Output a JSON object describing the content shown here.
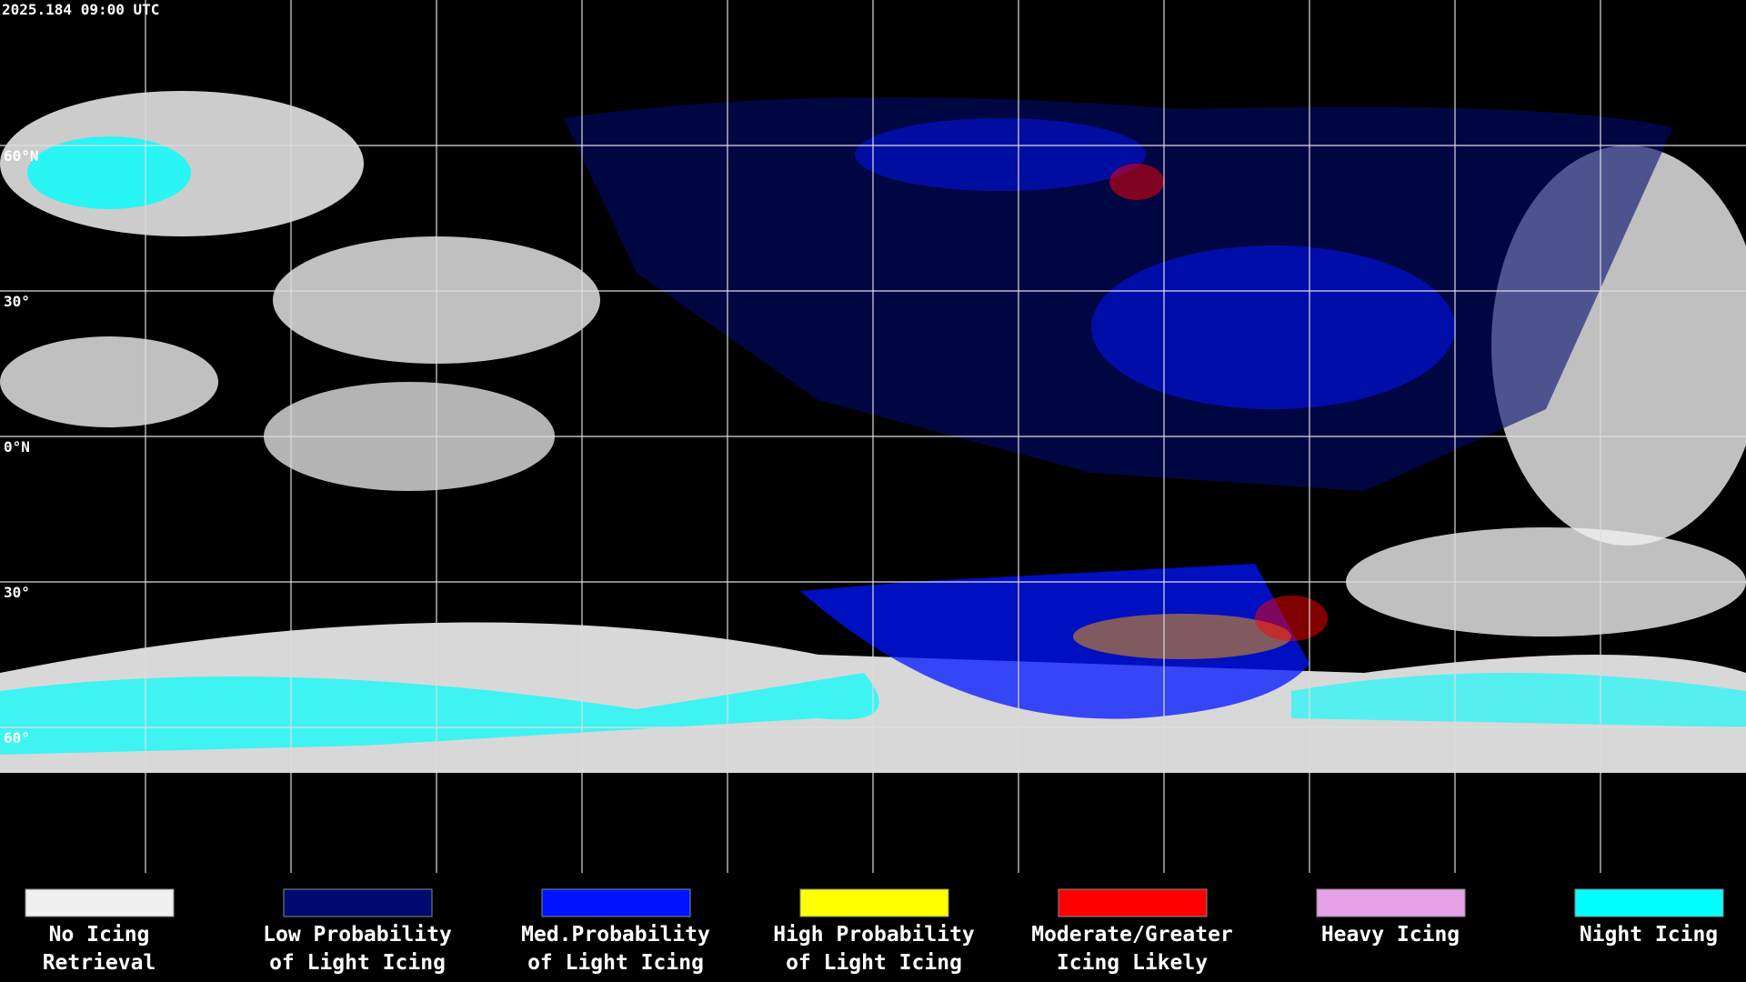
{
  "header": {
    "timestamp": "2025.184 09:00 UTC"
  },
  "map": {
    "latitude_labels": [
      "60°N",
      "30°",
      "0°N",
      "30°",
      "60°"
    ]
  },
  "legend": {
    "items": [
      {
        "lines": [
          "No Icing",
          "Retrieval"
        ],
        "color": "#f0f0f0"
      },
      {
        "lines": [
          "Low Probability",
          "of Light Icing"
        ],
        "color": "#000a6e"
      },
      {
        "lines": [
          "Med.Probability",
          "of Light Icing"
        ],
        "color": "#0014ff"
      },
      {
        "lines": [
          "High Probability",
          "of Light Icing"
        ],
        "color": "#ffff00"
      },
      {
        "lines": [
          "Moderate/Greater",
          "Icing Likely"
        ],
        "color": "#ff0000"
      },
      {
        "lines": [
          "Heavy Icing",
          ""
        ],
        "color": "#e6a0e6"
      },
      {
        "lines": [
          "Night Icing",
          ""
        ],
        "color": "#00ffff"
      }
    ]
  }
}
